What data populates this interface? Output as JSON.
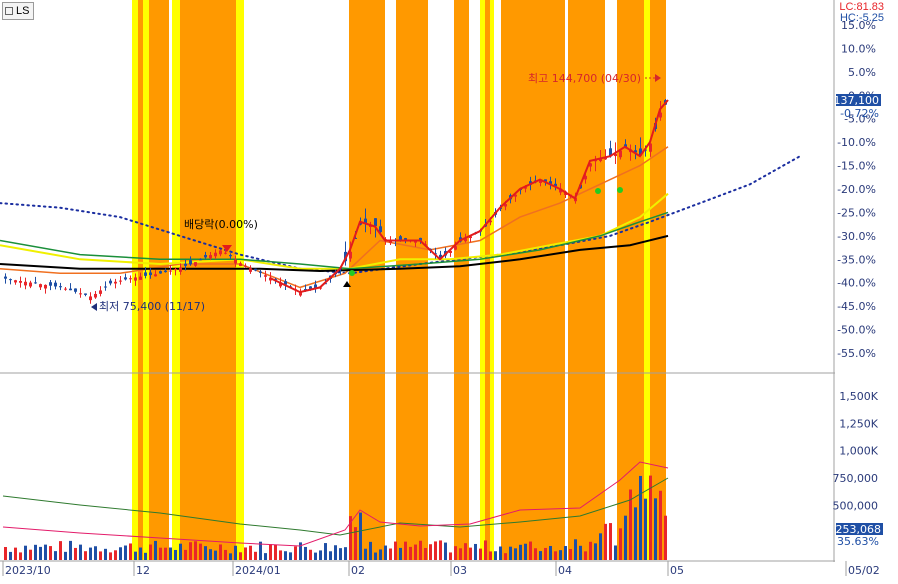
{
  "symbol": "LS",
  "indicators": {
    "lc": "LC:81.83",
    "hc": "HC:-5.25"
  },
  "colors": {
    "up": "#e8262b",
    "down": "#1f4fa5",
    "yellow_band": "#ffff00",
    "orange_band": "#ff9900",
    "axis_text": "#2a3a7a",
    "pct_text": "#2a3a7a",
    "bg": "#ffffff",
    "ma5": "#e31b1b",
    "ma10": "#f07020",
    "ma20": "#f0f000",
    "ma60": "#1a8f3a",
    "ma120": "#000000",
    "dotted": "#1b2ea0"
  },
  "price_axis": {
    "labels": [
      "15.0%",
      "10.0%",
      "5.0%",
      "0.0%",
      "-5.0%",
      "-10.0%",
      "-15.0%",
      "-20.0%",
      "-25.0%",
      "-30.0%",
      "-35.0%",
      "-40.0%",
      "-45.0%",
      "-50.0%",
      "-55.0%"
    ],
    "current_price": "137,100",
    "current_pct": "-0.72%"
  },
  "volume_axis": {
    "labels": [
      "1,500K",
      "1,250K",
      "1,000K",
      "750,000",
      "500,000"
    ],
    "current_volume": "253,068",
    "current_pct": "35.63%"
  },
  "x_axis": {
    "labels": [
      "2023/10",
      "12",
      "2024/01",
      "02",
      "03",
      "04",
      "05",
      "05/02"
    ]
  },
  "annotations": {
    "high": "최고 144,700 (04/30)",
    "low": "최저 75,400 (11/17)",
    "dividend": "배당락(0.00%)"
  },
  "chart_data": {
    "type": "candlestick",
    "y_unit": "percent",
    "ylim": [
      -58,
      18
    ],
    "bands": [
      {
        "color": "yellow",
        "from": 132,
        "to": 138
      },
      {
        "color": "orange",
        "from": 138,
        "to": 143
      },
      {
        "color": "yellow",
        "from": 143,
        "to": 149
      },
      {
        "color": "orange",
        "from": 149,
        "to": 169
      },
      {
        "color": "yellow",
        "from": 172,
        "to": 180
      },
      {
        "color": "orange",
        "from": 180,
        "to": 236
      },
      {
        "color": "yellow",
        "from": 236,
        "to": 244
      },
      {
        "color": "orange",
        "from": 349,
        "to": 385
      },
      {
        "color": "orange",
        "from": 396,
        "to": 428
      },
      {
        "color": "orange",
        "from": 454,
        "to": 469
      },
      {
        "color": "yellow",
        "from": 480,
        "to": 485
      },
      {
        "color": "orange",
        "from": 485,
        "to": 490
      },
      {
        "color": "yellow",
        "from": 490,
        "to": 494
      },
      {
        "color": "orange",
        "from": 501,
        "to": 565
      },
      {
        "color": "orange",
        "from": 568,
        "to": 605
      },
      {
        "color": "orange",
        "from": 617,
        "to": 644
      },
      {
        "color": "yellow",
        "from": 644,
        "to": 650
      },
      {
        "color": "orange",
        "from": 650,
        "to": 666
      }
    ],
    "close_path": [
      [
        0,
        -39
      ],
      [
        30,
        -40
      ],
      [
        60,
        -41
      ],
      [
        90,
        -43
      ],
      [
        110,
        -40
      ],
      [
        130,
        -39
      ],
      [
        160,
        -38
      ],
      [
        190,
        -36
      ],
      [
        220,
        -33
      ],
      [
        240,
        -36
      ],
      [
        270,
        -39
      ],
      [
        300,
        -42
      ],
      [
        320,
        -41
      ],
      [
        340,
        -37
      ],
      [
        350,
        -33
      ],
      [
        360,
        -27
      ],
      [
        375,
        -28
      ],
      [
        385,
        -31
      ],
      [
        400,
        -31
      ],
      [
        420,
        -31
      ],
      [
        440,
        -35
      ],
      [
        460,
        -31
      ],
      [
        480,
        -29
      ],
      [
        500,
        -24
      ],
      [
        520,
        -20
      ],
      [
        540,
        -18
      ],
      [
        560,
        -20
      ],
      [
        575,
        -22
      ],
      [
        590,
        -14
      ],
      [
        610,
        -13
      ],
      [
        625,
        -11
      ],
      [
        640,
        -13
      ],
      [
        650,
        -10
      ],
      [
        660,
        -3
      ],
      [
        668,
        -1
      ]
    ],
    "ma_lines": [
      {
        "name": "ma10",
        "points": [
          [
            0,
            -37
          ],
          [
            60,
            -38
          ],
          [
            120,
            -38
          ],
          [
            180,
            -36
          ],
          [
            240,
            -36
          ],
          [
            300,
            -41
          ],
          [
            345,
            -38
          ],
          [
            380,
            -31
          ],
          [
            430,
            -33
          ],
          [
            480,
            -31
          ],
          [
            520,
            -26
          ],
          [
            560,
            -23
          ],
          [
            600,
            -19
          ],
          [
            640,
            -15
          ],
          [
            668,
            -11
          ]
        ]
      },
      {
        "name": "ma20",
        "points": [
          [
            0,
            -32
          ],
          [
            80,
            -35
          ],
          [
            160,
            -36
          ],
          [
            240,
            -35
          ],
          [
            300,
            -37
          ],
          [
            350,
            -37
          ],
          [
            400,
            -35
          ],
          [
            450,
            -35
          ],
          [
            500,
            -34
          ],
          [
            550,
            -32
          ],
          [
            600,
            -30
          ],
          [
            640,
            -26
          ],
          [
            668,
            -21
          ]
        ]
      },
      {
        "name": "ma60",
        "points": [
          [
            0,
            -31
          ],
          [
            80,
            -34
          ],
          [
            160,
            -35
          ],
          [
            240,
            -35
          ],
          [
            300,
            -36
          ],
          [
            350,
            -37
          ],
          [
            420,
            -36
          ],
          [
            480,
            -35
          ],
          [
            540,
            -33
          ],
          [
            600,
            -30
          ],
          [
            640,
            -27
          ],
          [
            668,
            -25
          ]
        ]
      },
      {
        "name": "ma120",
        "points": [
          [
            0,
            -36
          ],
          [
            80,
            -37
          ],
          [
            180,
            -37
          ],
          [
            260,
            -37
          ],
          [
            320,
            -37.5
          ],
          [
            400,
            -37
          ],
          [
            460,
            -36.5
          ],
          [
            520,
            -35
          ],
          [
            580,
            -33
          ],
          [
            630,
            -32
          ],
          [
            668,
            -30
          ]
        ]
      }
    ],
    "dotted_line": [
      [
        0,
        -23
      ],
      [
        60,
        -24
      ],
      [
        120,
        -26
      ],
      [
        180,
        -30
      ],
      [
        240,
        -34
      ],
      [
        300,
        -37
      ],
      [
        350,
        -38
      ],
      [
        420,
        -36
      ],
      [
        500,
        -34
      ],
      [
        560,
        -32
      ],
      [
        610,
        -30
      ],
      [
        650,
        -27
      ],
      [
        700,
        -23
      ],
      [
        750,
        -19
      ],
      [
        800,
        -13
      ]
    ],
    "volume": {
      "ylim": [
        0,
        1600000
      ],
      "bars_hint": "varies"
    }
  }
}
